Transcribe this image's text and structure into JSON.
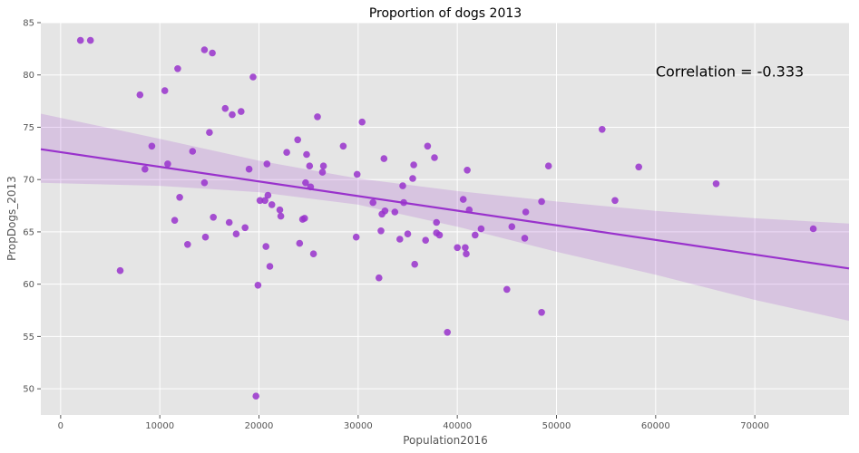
{
  "chart_data": {
    "type": "scatter",
    "title": "Proportion of dogs 2013",
    "xlabel": "Population2016",
    "ylabel": "PropDogs_2013",
    "xlim": [
      -2000,
      79500
    ],
    "ylim": [
      47.5,
      85
    ],
    "xticks": [
      0,
      10000,
      20000,
      30000,
      40000,
      50000,
      60000,
      70000
    ],
    "yticks": [
      50,
      55,
      60,
      65,
      70,
      75,
      80,
      85
    ],
    "grid": true,
    "annotation": {
      "text": "Correlation = -0.333",
      "x": 60000,
      "y": 80
    },
    "regression": {
      "x0": -2000,
      "y0": 72.9,
      "x1": 79500,
      "y1": 61.5
    },
    "confidence_band": {
      "x": [
        -2000,
        10000,
        20000,
        30000,
        40000,
        50000,
        60000,
        70000,
        79500
      ],
      "upper": [
        76.3,
        73.9,
        71.8,
        70.1,
        68.9,
        67.9,
        67.0,
        66.3,
        65.8
      ],
      "lower": [
        69.7,
        69.4,
        68.8,
        67.6,
        65.5,
        63.1,
        60.9,
        58.5,
        56.5
      ]
    },
    "colors": {
      "points": "#9932CC",
      "line": "#9932CC",
      "band": "#9932CC"
    },
    "points": [
      {
        "x": 2000,
        "y": 83.3
      },
      {
        "x": 3000,
        "y": 83.3
      },
      {
        "x": 6000,
        "y": 61.3
      },
      {
        "x": 8000,
        "y": 78.1
      },
      {
        "x": 8500,
        "y": 71.0
      },
      {
        "x": 9200,
        "y": 73.2
      },
      {
        "x": 10500,
        "y": 78.5
      },
      {
        "x": 10800,
        "y": 71.5
      },
      {
        "x": 11500,
        "y": 66.1
      },
      {
        "x": 11800,
        "y": 80.6
      },
      {
        "x": 12000,
        "y": 68.3
      },
      {
        "x": 12800,
        "y": 63.8
      },
      {
        "x": 13300,
        "y": 72.7
      },
      {
        "x": 14500,
        "y": 82.4
      },
      {
        "x": 14500,
        "y": 69.7
      },
      {
        "x": 14600,
        "y": 64.5
      },
      {
        "x": 15000,
        "y": 74.5
      },
      {
        "x": 15300,
        "y": 82.1
      },
      {
        "x": 15400,
        "y": 66.4
      },
      {
        "x": 16600,
        "y": 76.8
      },
      {
        "x": 17000,
        "y": 65.9
      },
      {
        "x": 17300,
        "y": 76.2
      },
      {
        "x": 17700,
        "y": 64.8
      },
      {
        "x": 18200,
        "y": 76.5
      },
      {
        "x": 18600,
        "y": 65.4
      },
      {
        "x": 19000,
        "y": 71.0
      },
      {
        "x": 19400,
        "y": 79.8
      },
      {
        "x": 19700,
        "y": 49.3
      },
      {
        "x": 19900,
        "y": 59.9
      },
      {
        "x": 20100,
        "y": 68.0
      },
      {
        "x": 20600,
        "y": 68.0
      },
      {
        "x": 20800,
        "y": 71.5
      },
      {
        "x": 20900,
        "y": 68.5
      },
      {
        "x": 20700,
        "y": 63.6
      },
      {
        "x": 21100,
        "y": 61.7
      },
      {
        "x": 21300,
        "y": 67.6
      },
      {
        "x": 22100,
        "y": 67.1
      },
      {
        "x": 22200,
        "y": 66.5
      },
      {
        "x": 22800,
        "y": 72.6
      },
      {
        "x": 23900,
        "y": 73.8
      },
      {
        "x": 24100,
        "y": 63.9
      },
      {
        "x": 24400,
        "y": 66.2
      },
      {
        "x": 24600,
        "y": 66.3
      },
      {
        "x": 24700,
        "y": 69.7
      },
      {
        "x": 24800,
        "y": 72.4
      },
      {
        "x": 25100,
        "y": 71.3
      },
      {
        "x": 25200,
        "y": 69.3
      },
      {
        "x": 25500,
        "y": 62.9
      },
      {
        "x": 25900,
        "y": 76.0
      },
      {
        "x": 26400,
        "y": 70.7
      },
      {
        "x": 26500,
        "y": 71.3
      },
      {
        "x": 28500,
        "y": 73.2
      },
      {
        "x": 29800,
        "y": 64.5
      },
      {
        "x": 29900,
        "y": 70.5
      },
      {
        "x": 30400,
        "y": 75.5
      },
      {
        "x": 31500,
        "y": 67.8
      },
      {
        "x": 32100,
        "y": 60.6
      },
      {
        "x": 32300,
        "y": 65.1
      },
      {
        "x": 32400,
        "y": 66.7
      },
      {
        "x": 32600,
        "y": 72.0
      },
      {
        "x": 32700,
        "y": 67.0
      },
      {
        "x": 33700,
        "y": 66.9
      },
      {
        "x": 34200,
        "y": 64.3
      },
      {
        "x": 34500,
        "y": 69.4
      },
      {
        "x": 34600,
        "y": 67.8
      },
      {
        "x": 35000,
        "y": 64.8
      },
      {
        "x": 35500,
        "y": 70.1
      },
      {
        "x": 35600,
        "y": 71.4
      },
      {
        "x": 35700,
        "y": 61.9
      },
      {
        "x": 36800,
        "y": 64.2
      },
      {
        "x": 37000,
        "y": 73.2
      },
      {
        "x": 37700,
        "y": 72.1
      },
      {
        "x": 37900,
        "y": 65.9
      },
      {
        "x": 37900,
        "y": 64.9
      },
      {
        "x": 38200,
        "y": 64.7
      },
      {
        "x": 39000,
        "y": 55.4
      },
      {
        "x": 40000,
        "y": 63.5
      },
      {
        "x": 40600,
        "y": 68.1
      },
      {
        "x": 40800,
        "y": 63.5
      },
      {
        "x": 40900,
        "y": 62.9
      },
      {
        "x": 41000,
        "y": 70.9
      },
      {
        "x": 41200,
        "y": 67.1
      },
      {
        "x": 41800,
        "y": 64.7
      },
      {
        "x": 42400,
        "y": 65.3
      },
      {
        "x": 45000,
        "y": 59.5
      },
      {
        "x": 45500,
        "y": 65.5
      },
      {
        "x": 46800,
        "y": 64.4
      },
      {
        "x": 46900,
        "y": 66.9
      },
      {
        "x": 48500,
        "y": 57.3
      },
      {
        "x": 48500,
        "y": 67.9
      },
      {
        "x": 49200,
        "y": 71.3
      },
      {
        "x": 54600,
        "y": 74.8
      },
      {
        "x": 55900,
        "y": 68.0
      },
      {
        "x": 58300,
        "y": 71.2
      },
      {
        "x": 66100,
        "y": 69.6
      },
      {
        "x": 75900,
        "y": 65.3
      }
    ]
  }
}
